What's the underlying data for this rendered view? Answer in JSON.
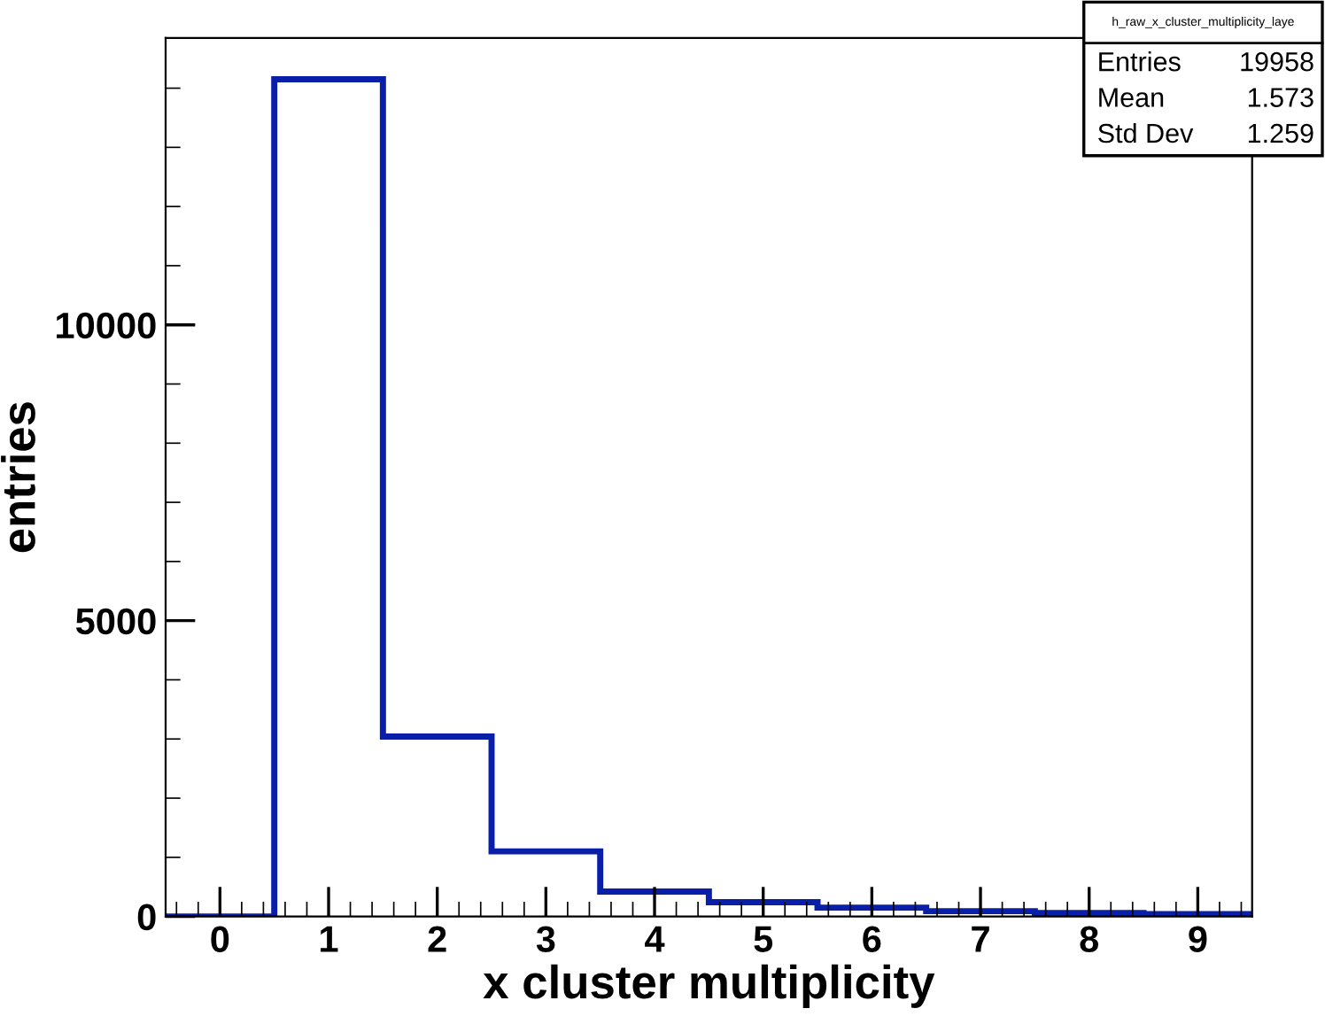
{
  "chart_data": {
    "type": "histogram",
    "xlabel": "x cluster multiplicity",
    "ylabel": "entries",
    "bins": [
      -0.5,
      0.5,
      1.5,
      2.5,
      3.5,
      4.5,
      5.5,
      6.5,
      7.5,
      8.5,
      9.5
    ],
    "values": [
      0,
      14150,
      3040,
      1100,
      420,
      240,
      150,
      90,
      60,
      40
    ],
    "color": "#0a1fa8",
    "xlim": [
      -0.5,
      9.5
    ],
    "ylim": [
      0,
      14850
    ],
    "xticks": [
      0,
      1,
      2,
      3,
      4,
      5,
      6,
      7,
      8,
      9
    ],
    "yticks": [
      0,
      5000,
      10000
    ],
    "grid": false,
    "legend": false,
    "annotations": [
      "h_raw_x_cluster_multiplicity_laye",
      "Entries    19958",
      "Mean        1.573",
      "Std Dev     1.259"
    ]
  }
}
